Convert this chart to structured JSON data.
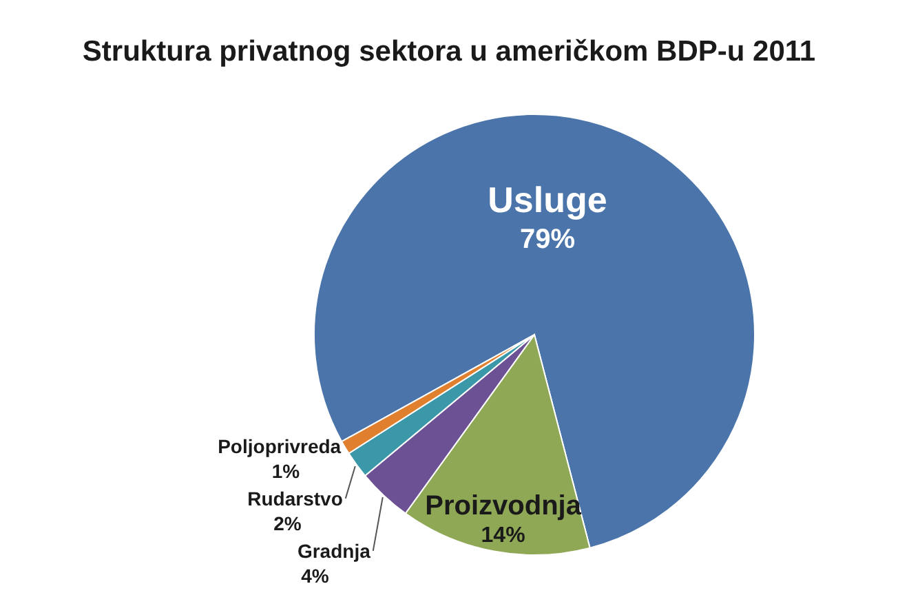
{
  "chart_data": {
    "type": "pie",
    "title": "Struktura privatnog sektora u američkom BDP-u 2011",
    "categories": [
      "Usluge",
      "Proizvodnja",
      "Gradnja",
      "Rudarstvo",
      "Poljoprivreda"
    ],
    "values": [
      79,
      14,
      4,
      2,
      1
    ],
    "value_labels": [
      "79%",
      "14%",
      "4%",
      "2%",
      "1%"
    ],
    "colors": [
      "#4a74aa",
      "#8fa855",
      "#6c5194",
      "#3a98a9",
      "#e0802e"
    ]
  }
}
